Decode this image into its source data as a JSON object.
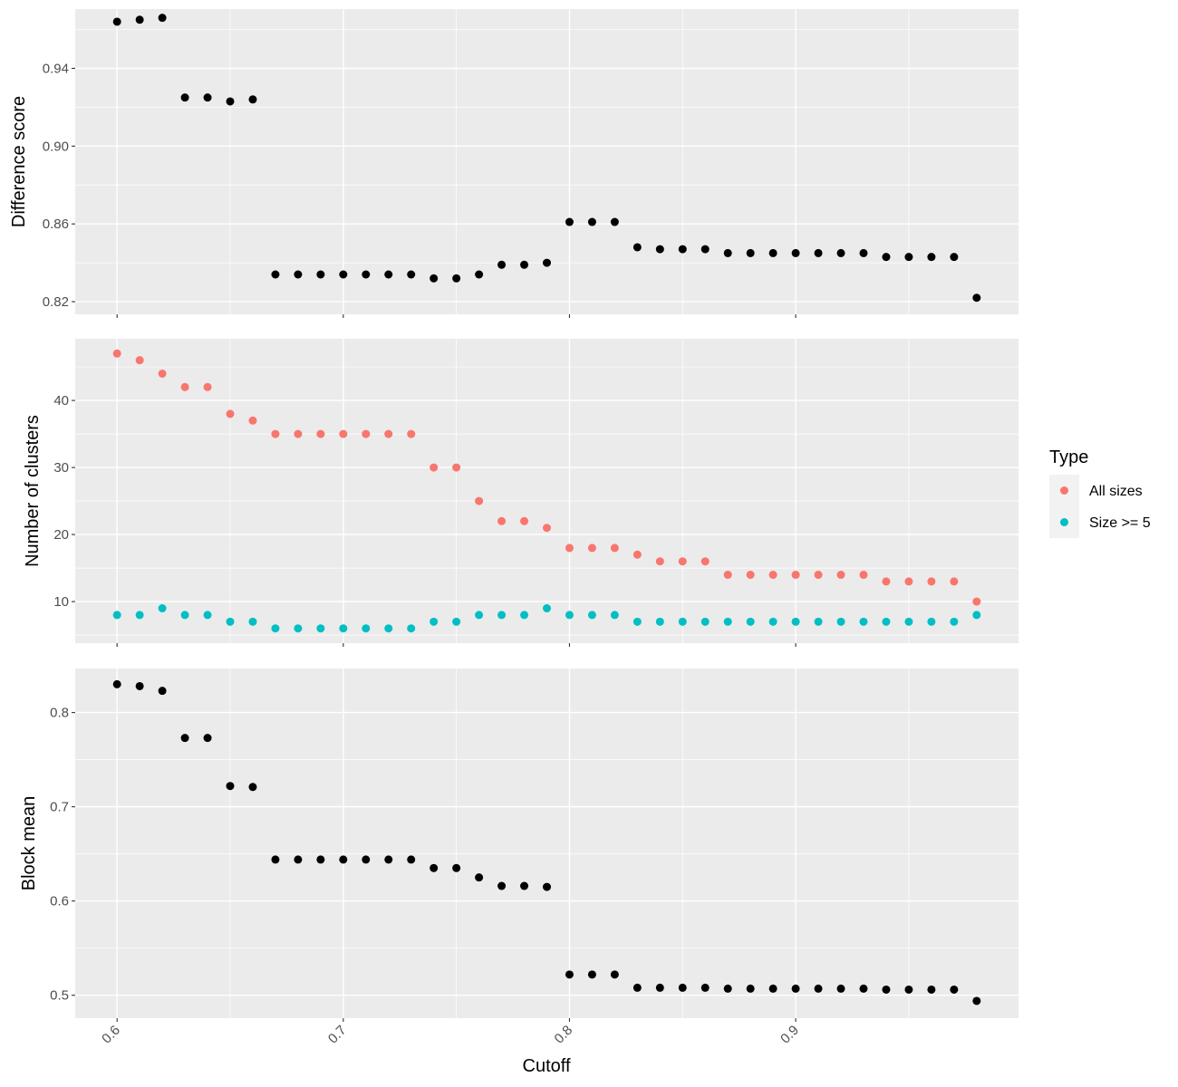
{
  "chart_data": {
    "type": "scatter",
    "xlabel": "Cutoff",
    "x_ticks": [
      0.6,
      0.7,
      0.8,
      0.9
    ],
    "x_tick_labels": [
      "0.6",
      "0.7",
      "0.8",
      "0.9"
    ],
    "xlim": [
      0.5815,
      0.9985
    ],
    "x": [
      0.6,
      0.61,
      0.62,
      0.63,
      0.64,
      0.65,
      0.66,
      0.67,
      0.68,
      0.69,
      0.7,
      0.71,
      0.72,
      0.73,
      0.74,
      0.75,
      0.76,
      0.77,
      0.78,
      0.79,
      0.8,
      0.81,
      0.82,
      0.83,
      0.84,
      0.85,
      0.86,
      0.87,
      0.88,
      0.89,
      0.9,
      0.91,
      0.92,
      0.93,
      0.94,
      0.95,
      0.96,
      0.97,
      0.98
    ],
    "legend": {
      "title": "Type",
      "position": "right",
      "entries": [
        {
          "label": "All sizes",
          "color": "#F8766D"
        },
        {
          "label": "Size >= 5",
          "color": "#00BFC4"
        }
      ]
    },
    "panels": [
      {
        "ylabel": "Difference score",
        "ylim": [
          0.8135,
          0.9705
        ],
        "y_ticks": [
          0.82,
          0.86,
          0.9,
          0.94
        ],
        "y_tick_labels": [
          "0.82",
          "0.86",
          "0.90",
          "0.94"
        ],
        "series": [
          {
            "color": "#000000",
            "values": [
              0.964,
              0.965,
              0.966,
              0.925,
              0.925,
              0.923,
              0.924,
              0.834,
              0.834,
              0.834,
              0.834,
              0.834,
              0.834,
              0.834,
              0.832,
              0.832,
              0.834,
              0.839,
              0.839,
              0.84,
              0.861,
              0.861,
              0.861,
              0.848,
              0.847,
              0.847,
              0.847,
              0.845,
              0.845,
              0.845,
              0.845,
              0.845,
              0.845,
              0.845,
              0.843,
              0.843,
              0.843,
              0.843,
              0.822
            ]
          }
        ]
      },
      {
        "ylabel": "Number of clusters",
        "ylim": [
          3.8,
          49.2
        ],
        "y_ticks": [
          10,
          20,
          30,
          40
        ],
        "y_tick_labels": [
          "10",
          "20",
          "30",
          "40"
        ],
        "series": [
          {
            "name": "All sizes",
            "color": "#F8766D",
            "values": [
              47,
              46,
              44,
              42,
              42,
              38,
              37,
              35,
              35,
              35,
              35,
              35,
              35,
              35,
              30,
              30,
              25,
              22,
              22,
              21,
              18,
              18,
              18,
              17,
              16,
              16,
              16,
              14,
              14,
              14,
              14,
              14,
              14,
              14,
              13,
              13,
              13,
              13,
              10
            ]
          },
          {
            "name": "Size >= 5",
            "color": "#00BFC4",
            "values": [
              8,
              8,
              9,
              8,
              8,
              7,
              7,
              6,
              6,
              6,
              6,
              6,
              6,
              6,
              7,
              7,
              8,
              8,
              8,
              9,
              8,
              8,
              8,
              7,
              7,
              7,
              7,
              7,
              7,
              7,
              7,
              7,
              7,
              7,
              7,
              7,
              7,
              7,
              8
            ]
          }
        ]
      },
      {
        "ylabel": "Block mean",
        "ylim": [
          0.4757,
          0.8467
        ],
        "y_ticks": [
          0.5,
          0.6,
          0.7,
          0.8
        ],
        "y_tick_labels": [
          "0.5",
          "0.6",
          "0.7",
          "0.8"
        ],
        "series": [
          {
            "color": "#000000",
            "values": [
              0.83,
              0.828,
              0.823,
              0.773,
              0.773,
              0.722,
              0.721,
              0.644,
              0.644,
              0.644,
              0.644,
              0.644,
              0.644,
              0.644,
              0.635,
              0.635,
              0.625,
              0.616,
              0.616,
              0.615,
              0.522,
              0.522,
              0.522,
              0.508,
              0.508,
              0.508,
              0.508,
              0.507,
              0.507,
              0.507,
              0.507,
              0.507,
              0.507,
              0.507,
              0.506,
              0.506,
              0.506,
              0.506,
              0.494
            ]
          }
        ]
      }
    ]
  }
}
